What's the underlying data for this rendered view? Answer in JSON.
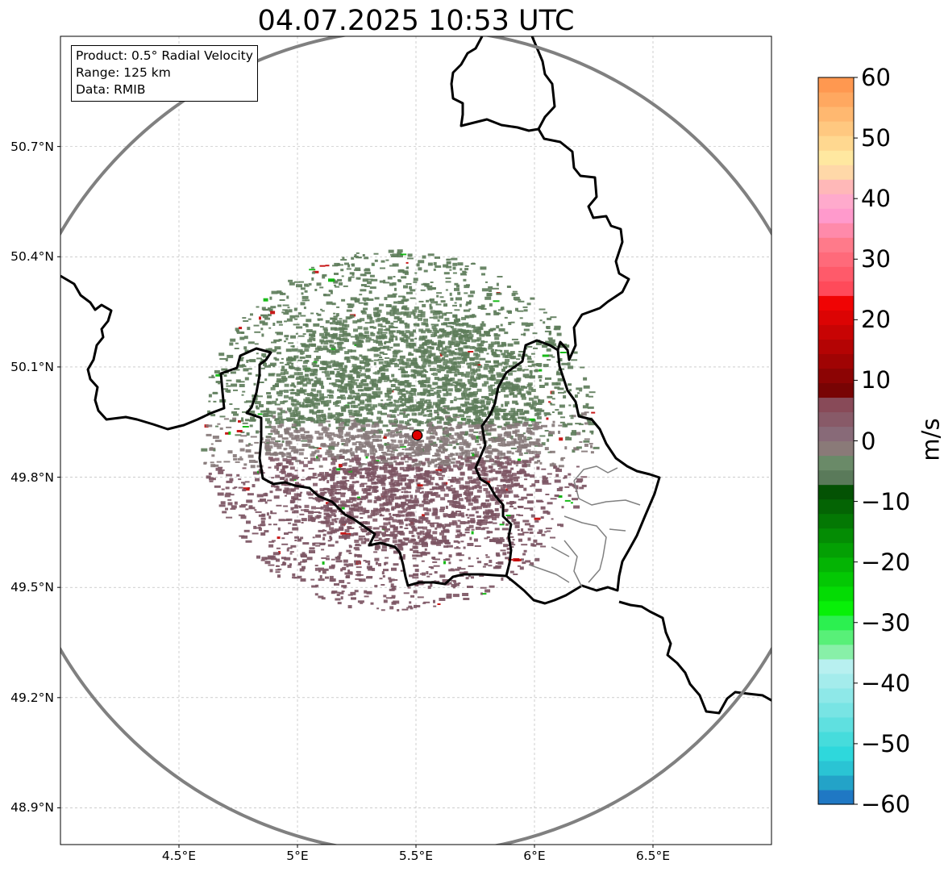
{
  "title": "04.07.2025 10:53 UTC",
  "info_box": {
    "product": "Product: 0.5° Radial Velocity",
    "range": "Range: 125 km",
    "data": "Data: RMIB"
  },
  "map": {
    "lon_range": [
      4.0,
      7.0
    ],
    "lat_range": [
      48.8,
      51.0
    ],
    "radar_site": {
      "lon": 5.505,
      "lat": 49.914
    },
    "range_ring_km": 125,
    "grid": true,
    "lon_ticks": [
      {
        "value": 4.5,
        "label": "4.5°E"
      },
      {
        "value": 5.0,
        "label": "5°E"
      },
      {
        "value": 5.5,
        "label": "5.5°E"
      },
      {
        "value": 6.0,
        "label": "6°E"
      },
      {
        "value": 6.5,
        "label": "6.5°E"
      }
    ],
    "lat_ticks": [
      {
        "value": 50.7,
        "label": "50.7°N"
      },
      {
        "value": 50.4,
        "label": "50.4°N"
      },
      {
        "value": 50.1,
        "label": "50.1°N"
      },
      {
        "value": 49.8,
        "label": "49.8°N"
      },
      {
        "value": 49.5,
        "label": "49.5°N"
      },
      {
        "value": 49.2,
        "label": "49.2°N"
      },
      {
        "value": 48.9,
        "label": "48.9°N"
      }
    ]
  },
  "colorbar": {
    "unit": "m/s",
    "vmin": -60,
    "vmax": 60,
    "ticks": [
      {
        "value": 60,
        "label": "60"
      },
      {
        "value": 50,
        "label": "50"
      },
      {
        "value": 40,
        "label": "40"
      },
      {
        "value": 30,
        "label": "30"
      },
      {
        "value": 20,
        "label": "20"
      },
      {
        "value": 10,
        "label": "10"
      },
      {
        "value": 0,
        "label": "0"
      },
      {
        "value": -10,
        "label": "−10"
      },
      {
        "value": -20,
        "label": "−20"
      },
      {
        "value": -30,
        "label": "−30"
      },
      {
        "value": -40,
        "label": "−40"
      },
      {
        "value": -50,
        "label": "−50"
      },
      {
        "value": -60,
        "label": "−60"
      }
    ],
    "colors": [
      "#1f78c4",
      "#23a3c8",
      "#2ac4d4",
      "#2ed8dc",
      "#46dcdc",
      "#5fe0e0",
      "#78e4e4",
      "#8ee8e8",
      "#a4ecec",
      "#b8f0f0",
      "#88f0a8",
      "#58f078",
      "#2cf050",
      "#08f008",
      "#04dc04",
      "#04c804",
      "#04b404",
      "#04a004",
      "#048c04",
      "#047804",
      "#046404",
      "#045204",
      "#5a7a5a",
      "#6a8a68",
      "#8a7a78",
      "#886a78",
      "#885a68",
      "#884a58",
      "#780404",
      "#8c0404",
      "#a00404",
      "#b40404",
      "#c80404",
      "#dc0404",
      "#f00404",
      "#ff4a5a",
      "#ff5a6a",
      "#ff6a7a",
      "#ff7a8a",
      "#ff8aaa",
      "#ff9acc",
      "#ffaacc",
      "#ffb8b8",
      "#ffd8a8",
      "#ffe8a0",
      "#ffd890",
      "#ffc880",
      "#ffb870",
      "#ffa860",
      "#ff9850"
    ]
  },
  "echo_colors": {
    "approaching_weak": "#5e7d5b",
    "receding_weak": "#7c5563",
    "near_zero": "#87797a",
    "approaching_strong": "#06b506",
    "receding_strong": "#c30505"
  }
}
